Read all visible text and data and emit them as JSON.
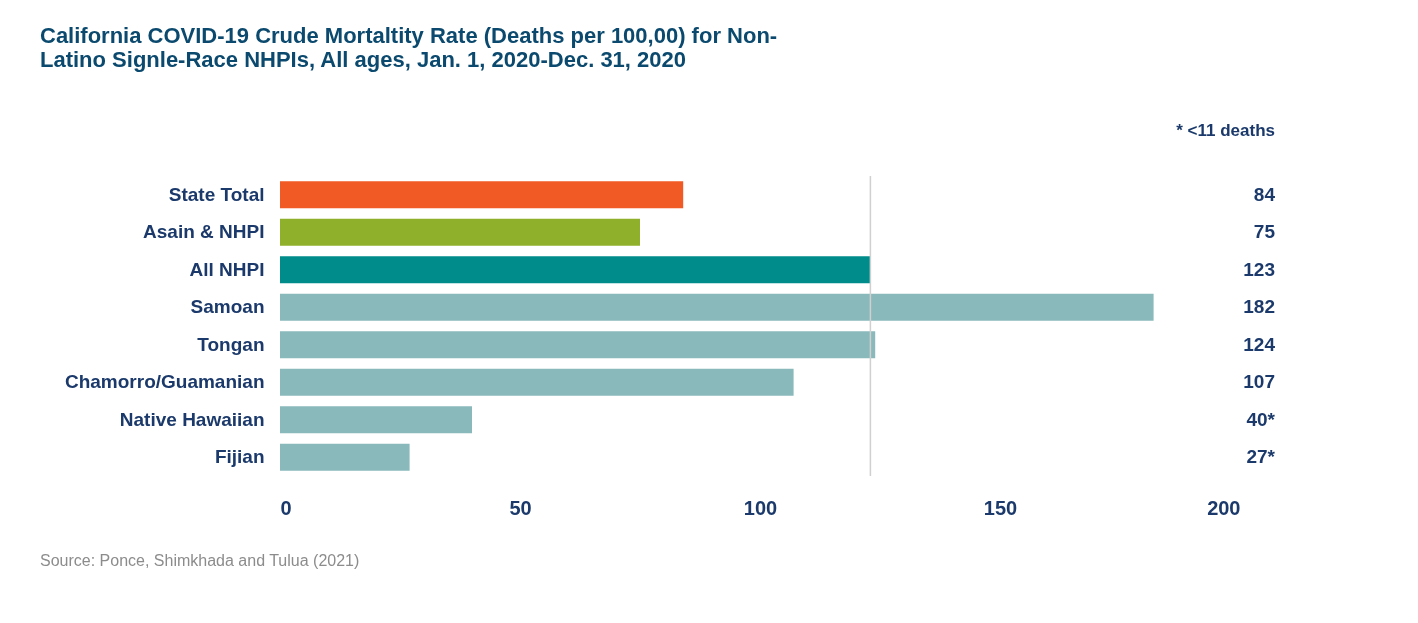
{
  "chart_data": {
    "type": "bar",
    "orientation": "horizontal",
    "title": "California COVID-19 Crude Mortaltity Rate (Deaths per 100,00) for Non-Latino Signle-Race NHPIs, All ages, Jan. 1, 2020-Dec. 31, 2020",
    "categories": [
      "State Total",
      "Asain & NHPI",
      "All NHPI",
      "Samoan",
      "Tongan",
      "Chamorro/Guamanian",
      "Native Hawaiian",
      "Fijian"
    ],
    "values": [
      84,
      75,
      123,
      182,
      124,
      107,
      40,
      27
    ],
    "colors": [
      "#f15a24",
      "#8fb02b",
      "#008c8a",
      "#8ab9bb",
      "#8ab9bb",
      "#8ab9bb",
      "#8ab9bb",
      "#8ab9bb"
    ],
    "value_labels": [
      "84",
      "75",
      "123",
      "182",
      "124",
      "107",
      "40*",
      "27*"
    ],
    "xlim": [
      0,
      200
    ],
    "xticks": [
      0,
      50,
      100,
      150,
      200
    ],
    "ref_lines": [
      {
        "axis": "x",
        "value": 123,
        "label": null,
        "color": "#d0d0d0"
      }
    ],
    "annotations": [
      "* <11 deaths",
      "Source: Ponce, Shimkhada and Tulua (2021)"
    ],
    "data_labels": false
  }
}
